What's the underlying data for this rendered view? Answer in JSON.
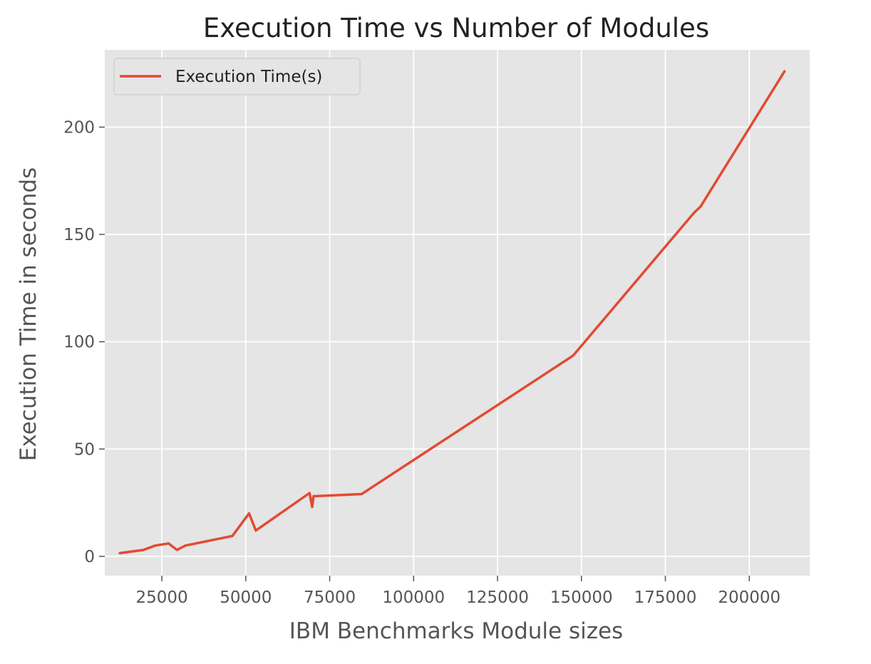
{
  "chart_data": {
    "type": "line",
    "title": "Execution Time vs Number of Modules",
    "xlabel": "IBM Benchmarks Module sizes",
    "ylabel": "Execution Time in seconds",
    "xlim": [
      8000,
      218000
    ],
    "ylim": [
      -9,
      236
    ],
    "xticks": [
      25000,
      50000,
      75000,
      100000,
      125000,
      150000,
      175000,
      200000
    ],
    "yticks": [
      0,
      50,
      100,
      150,
      200
    ],
    "grid": true,
    "legend_position": "top-left",
    "series": [
      {
        "name": "Execution Time(s)",
        "color": "#E24A33",
        "points": [
          [
            12500,
            1.5
          ],
          [
            19500,
            3.0
          ],
          [
            23000,
            5.0
          ],
          [
            27000,
            6.0
          ],
          [
            29500,
            3.0
          ],
          [
            32000,
            5.0
          ],
          [
            46000,
            9.5
          ],
          [
            51000,
            20.0
          ],
          [
            53000,
            12.0
          ],
          [
            69000,
            29.5
          ],
          [
            69800,
            23.0
          ],
          [
            70200,
            28.0
          ],
          [
            84500,
            29.0
          ],
          [
            147500,
            93.5
          ],
          [
            183500,
            160.0
          ],
          [
            185500,
            163.0
          ],
          [
            210500,
            226.0
          ]
        ]
      }
    ]
  }
}
